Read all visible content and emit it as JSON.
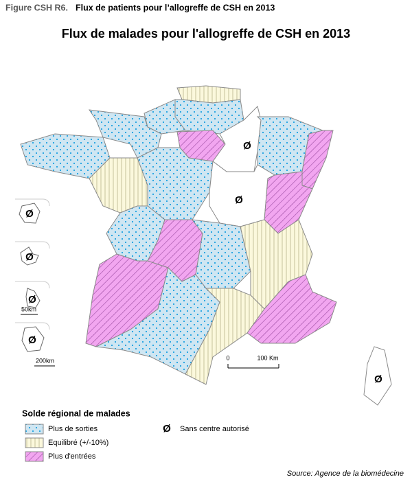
{
  "figure_label": "Figure CSH R6.",
  "figure_caption": "Flux de patients pour l’allogreffe de CSH en 2013",
  "map": {
    "title": "Flux de malades pour l'allogreffe de CSH en 2013",
    "no_center_symbol": "Ø",
    "scale_labels": [
      "0",
      "100 Km"
    ],
    "inset_scale_labels": [
      "50km",
      "200km"
    ]
  },
  "legend": {
    "title": "Solde régional de malades",
    "items": [
      {
        "label": "Plus de sorties",
        "color": "#cfe6f2",
        "mark_color": "#1aa0e0"
      },
      {
        "label": "Equilibré (+/-10%)",
        "color": "#fbf8dc",
        "mark_color": "#b8b48a"
      },
      {
        "label": "Plus d'entrées",
        "color": "#f2a6f0",
        "mark_color": "#9a4aa0"
      },
      {
        "label": "Sans centre autorisé",
        "color": "#ffffff",
        "mark_color": "#000000"
      }
    ]
  },
  "source": "Source: Agence de la biomédecine"
}
